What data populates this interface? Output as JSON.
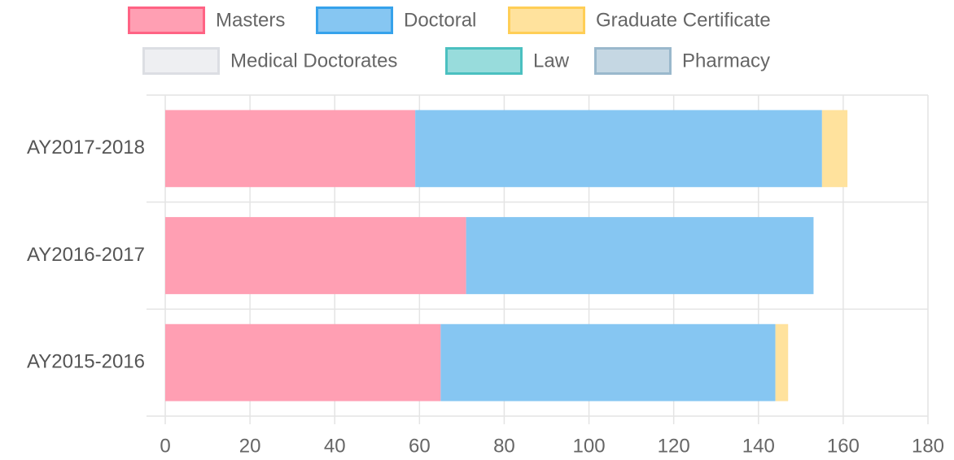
{
  "chart_data": {
    "type": "stacked_bar_horizontal",
    "categories": [
      "AY2017-2018",
      "AY2016-2017",
      "AY2015-2016"
    ],
    "series": [
      {
        "name": "Masters",
        "color": "#ff6384",
        "fill": "#ff9fb3",
        "values": [
          59,
          71,
          65
        ]
      },
      {
        "name": "Doctoral",
        "color": "#36a2eb",
        "fill": "#86c6f2",
        "values": [
          96,
          82,
          79
        ]
      },
      {
        "name": "Graduate Certificate",
        "color": "#ffce56",
        "fill": "#ffe29d",
        "values": [
          6,
          0,
          3
        ]
      },
      {
        "name": "Medical Doctorates",
        "color": "#dcdee3",
        "fill": "#eeeff2",
        "values": [
          0,
          0,
          0
        ]
      },
      {
        "name": "Law",
        "color": "#4bc0c0",
        "fill": "#98dcdc",
        "values": [
          0,
          0,
          0
        ]
      },
      {
        "name": "Pharmacy",
        "color": "#9ab8cc",
        "fill": "#c5d7e3",
        "values": [
          0,
          0,
          0
        ]
      }
    ],
    "xlim": [
      0,
      180
    ],
    "xticks": [
      0,
      20,
      40,
      60,
      80,
      100,
      120,
      140,
      160,
      180
    ],
    "grid": true,
    "legend": "top"
  }
}
